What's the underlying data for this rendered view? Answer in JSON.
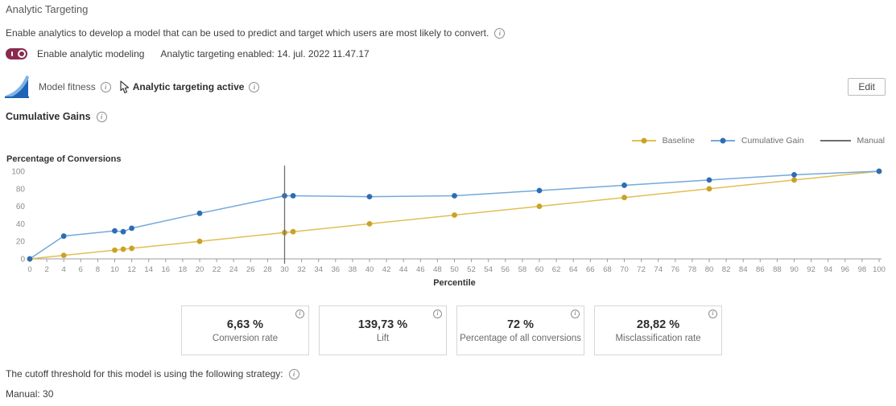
{
  "page": {
    "title": "Analytic Targeting",
    "description": "Enable analytics to develop a model that can be used to predict and target which users are most likely to convert.",
    "toggle_label": "Enable analytic modeling",
    "toggle_state": "on",
    "enabled_status": "Analytic targeting enabled: 14. jul. 2022 11.47.17",
    "model_fitness_label": "Model fitness",
    "targeting_active_label": "Analytic targeting active",
    "edit_button": "Edit",
    "section_title": "Cumulative Gains",
    "cutoff_text": "The cutoff threshold for this model is using the following strategy:",
    "cutoff_value": "Manual: 30"
  },
  "icons": {
    "info_glyph": "i"
  },
  "colors": {
    "toggle_on": "#8a2a4e",
    "baseline_line": "#e3be54",
    "baseline_dot": "#c9a227",
    "cumulative_line": "#74a9db",
    "cumulative_dot": "#2e6db4",
    "manual_line": "#6e6e6e",
    "axis": "#9b9b9b",
    "tick_label": "#8c8c8c"
  },
  "chart_data": {
    "type": "line",
    "title": "Cumulative Gains",
    "xlabel": "Percentile",
    "ylabel": "Percentage of Conversions",
    "xlim": [
      0,
      100
    ],
    "ylim": [
      0,
      100
    ],
    "x_tick_step": 2,
    "y_ticks": [
      0,
      20,
      40,
      60,
      80,
      100
    ],
    "grid": false,
    "legend_position": "top-right",
    "series": [
      {
        "name": "Baseline",
        "kind": "line",
        "x": [
          0,
          4,
          10,
          11,
          12,
          20,
          30,
          31,
          40,
          50,
          60,
          70,
          80,
          90,
          100
        ],
        "y": [
          0,
          4,
          10,
          11,
          12,
          20,
          30,
          31,
          40,
          50,
          60,
          70,
          80,
          90,
          100
        ]
      },
      {
        "name": "Cumulative Gain",
        "kind": "line",
        "x": [
          0,
          4,
          10,
          11,
          12,
          20,
          30,
          31,
          40,
          50,
          60,
          70,
          80,
          90,
          100
        ],
        "y": [
          0,
          26,
          32,
          31,
          35,
          52,
          72,
          72,
          71,
          72,
          78,
          84,
          90,
          96,
          100
        ]
      },
      {
        "name": "Manual",
        "kind": "vline",
        "x_value": 30
      }
    ]
  },
  "stats": [
    {
      "value": "6,63 %",
      "label": "Conversion rate"
    },
    {
      "value": "139,73 %",
      "label": "Lift"
    },
    {
      "value": "72 %",
      "label": "Percentage of all conversions"
    },
    {
      "value": "28,82 %",
      "label": "Misclassification rate"
    }
  ]
}
